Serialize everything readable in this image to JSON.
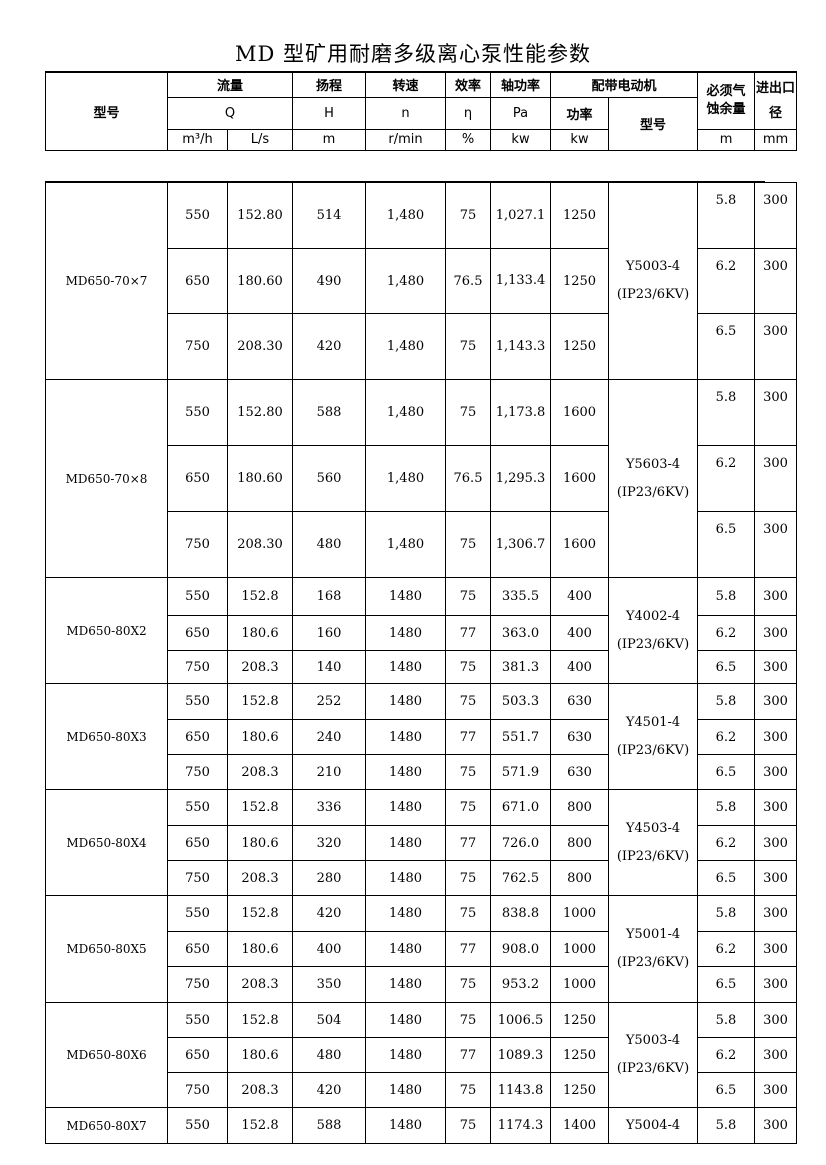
{
  "title": "MD 型矿用耐磨多级离心泵性能参数",
  "header": {
    "model": "型号",
    "flow": "流量",
    "head": "扬程",
    "speed": "转速",
    "eff": "效率",
    "shaft": "轴功率",
    "motor": "配带电动机",
    "npsh": "必须气蚀余量",
    "port": "进出口径",
    "Q": "Q",
    "H": "H",
    "n": "n",
    "eta": "η",
    "Pa": "Pa",
    "power": "功率",
    "motor_model": "型号",
    "u_q1": "m³/h",
    "u_q2": "L/s",
    "u_h": "m",
    "u_n": "r/min",
    "u_eta": "%",
    "u_pa": "kw",
    "u_p": "kw",
    "u_npsh": "m",
    "u_port": "mm"
  },
  "groups": [
    {
      "model": "MD650-70×7",
      "motor": "Y5003-4\n(IP23/6KV)",
      "rows": [
        [
          "550",
          "152.80",
          "514",
          "1,480",
          "75",
          "1,027.1",
          "1250",
          "5.8",
          "300"
        ],
        [
          "650",
          "180.60",
          "490",
          "1,480",
          "76.5",
          "1,133.4",
          "1250",
          "6.2",
          "300"
        ],
        [
          "750",
          "208.30",
          "420",
          "1,480",
          "75",
          "1,143.3",
          "1250",
          "6.5",
          "300"
        ]
      ]
    },
    {
      "model": "MD650-70×8",
      "motor": "Y5603-4\n(IP23/6KV)",
      "rows": [
        [
          "550",
          "152.80",
          "588",
          "1,480",
          "75",
          "1,173.8",
          "1600",
          "5.8",
          "300"
        ],
        [
          "650",
          "180.60",
          "560",
          "1,480",
          "76.5",
          "1,295.3",
          "1600",
          "6.2",
          "300"
        ],
        [
          "750",
          "208.30",
          "480",
          "1,480",
          "75",
          "1,306.7",
          "1600",
          "6.5",
          "300"
        ]
      ]
    },
    {
      "model": "MD650-80X2",
      "motor": "Y4002-4\n(IP23/6KV)",
      "rows": [
        [
          "550",
          "152.8",
          "168",
          "1480",
          "75",
          "335.5",
          "400",
          "5.8",
          "300"
        ],
        [
          "650",
          "180.6",
          "160",
          "1480",
          "77",
          "363.0",
          "400",
          "6.2",
          "300"
        ],
        [
          "750",
          "208.3",
          "140",
          "1480",
          "75",
          "381.3",
          "400",
          "6.5",
          "300"
        ]
      ]
    },
    {
      "model": "MD650-80X3",
      "motor": "Y4501-4\n(IP23/6KV)",
      "rows": [
        [
          "550",
          "152.8",
          "252",
          "1480",
          "75",
          "503.3",
          "630",
          "5.8",
          "300"
        ],
        [
          "650",
          "180.6",
          "240",
          "1480",
          "77",
          "551.7",
          "630",
          "6.2",
          "300"
        ],
        [
          "750",
          "208.3",
          "210",
          "1480",
          "75",
          "571.9",
          "630",
          "6.5",
          "300"
        ]
      ]
    },
    {
      "model": "MD650-80X4",
      "motor": "Y4503-4\n(IP23/6KV)",
      "rows": [
        [
          "550",
          "152.8",
          "336",
          "1480",
          "75",
          "671.0",
          "800",
          "5.8",
          "300"
        ],
        [
          "650",
          "180.6",
          "320",
          "1480",
          "77",
          "726.0",
          "800",
          "6.2",
          "300"
        ],
        [
          "750",
          "208.3",
          "280",
          "1480",
          "75",
          "762.5",
          "800",
          "6.5",
          "300"
        ]
      ]
    },
    {
      "model": "MD650-80X5",
      "motor": "Y5001-4\n(IP23/6KV)",
      "rows": [
        [
          "550",
          "152.8",
          "420",
          "1480",
          "75",
          "838.8",
          "1000",
          "5.8",
          "300"
        ],
        [
          "650",
          "180.6",
          "400",
          "1480",
          "77",
          "908.0",
          "1000",
          "6.2",
          "300"
        ],
        [
          "750",
          "208.3",
          "350",
          "1480",
          "75",
          "953.2",
          "1000",
          "6.5",
          "300"
        ]
      ]
    },
    {
      "model": "MD650-80X6",
      "motor": "Y5003-4\n(IP23/6KV)",
      "rows": [
        [
          "550",
          "152.8",
          "504",
          "1480",
          "75",
          "1006.5",
          "1250",
          "5.8",
          "300"
        ],
        [
          "650",
          "180.6",
          "480",
          "1480",
          "77",
          "1089.3",
          "1250",
          "6.2",
          "300"
        ],
        [
          "750",
          "208.3",
          "420",
          "1480",
          "75",
          "1143.8",
          "1250",
          "6.5",
          "300"
        ]
      ]
    },
    {
      "model": "MD650-80X7",
      "motor": "Y5004-4",
      "rows": [
        [
          "550",
          "152.8",
          "588",
          "1480",
          "75",
          "1174.3",
          "1400",
          "5.8",
          "300"
        ]
      ]
    }
  ]
}
